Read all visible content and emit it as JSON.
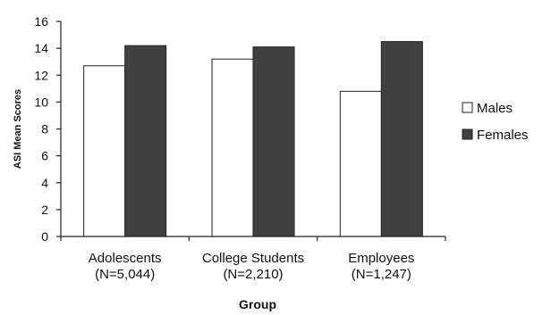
{
  "chart_data": {
    "type": "bar",
    "categories": [
      [
        "Adolescents",
        "(N=5,044)"
      ],
      [
        "College Students",
        "(N=2,210)"
      ],
      [
        "Employees",
        "(N=1,247)"
      ]
    ],
    "series": [
      {
        "name": "Males",
        "values": [
          12.7,
          13.2,
          10.8
        ],
        "color": "#ffffff"
      },
      {
        "name": "Females",
        "values": [
          14.2,
          14.1,
          14.5
        ],
        "color": "#404040"
      }
    ],
    "xlabel": "Group",
    "ylabel": "ASI Mean Scores",
    "ylim": [
      0,
      16
    ],
    "yticks": [
      0,
      2,
      4,
      6,
      8,
      10,
      12,
      14,
      16
    ],
    "grid": false,
    "legend_position": "right"
  }
}
